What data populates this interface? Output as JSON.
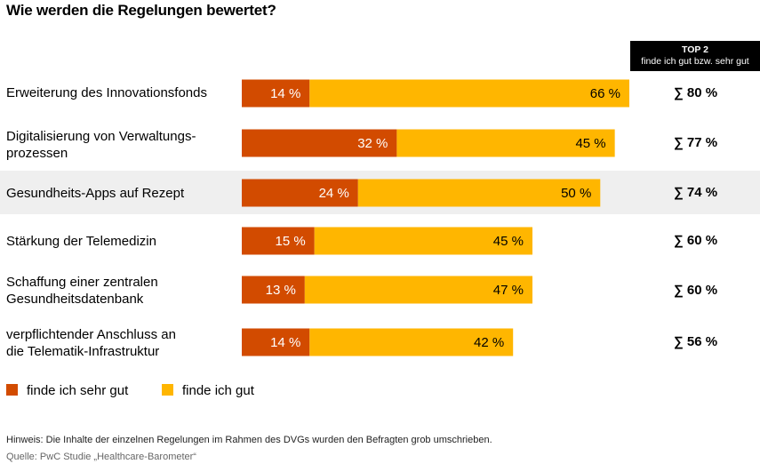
{
  "title": "Wie werden die Regelungen bewertet?",
  "top2_header": {
    "line1": "TOP 2",
    "line2": "finde ich gut bzw. sehr gut"
  },
  "colors": {
    "sehr_gut": "#d24b00",
    "gut": "#ffb600",
    "highlight_row": "#efefef"
  },
  "legend": {
    "sehr_gut": "finde ich sehr gut",
    "gut": "finde ich gut"
  },
  "rows": [
    {
      "label": "Erweiterung des Innovationsfonds",
      "sum": "∑ 80 %"
    },
    {
      "label": "Digitalisierung von Verwaltungs-\nprozessen",
      "sum": "∑ 77 %"
    },
    {
      "label": "Gesundheits-Apps auf Rezept",
      "sum": "∑ 74 %"
    },
    {
      "label": "Stärkung der Telemedizin",
      "sum": "∑ 60 %"
    },
    {
      "label": "Schaffung einer zentralen\nGesundheitsdatenbank",
      "sum": "∑ 60 %"
    },
    {
      "label": "verpflichtender Anschluss an\ndie Telematik-Infrastruktur",
      "sum": "∑ 56 %"
    }
  ],
  "chart_data": {
    "type": "bar",
    "orientation": "horizontal",
    "stacked": true,
    "title": "Wie werden die Regelungen bewertet?",
    "categories": [
      "Erweiterung des Innovationsfonds",
      "Digitalisierung von Verwaltungsprozessen",
      "Gesundheits-Apps auf Rezept",
      "Stärkung der Telemedizin",
      "Schaffung einer zentralen Gesundheitsdatenbank",
      "verpflichtender Anschluss an die Telematik-Infrastruktur"
    ],
    "series": [
      {
        "name": "finde ich sehr gut",
        "color": "#d24b00",
        "values": [
          14,
          32,
          24,
          15,
          13,
          14
        ],
        "labels": [
          "14 %",
          "32 %",
          "24 %",
          "15 %",
          "13 %",
          "14 %"
        ]
      },
      {
        "name": "finde ich gut",
        "color": "#ffb600",
        "values": [
          66,
          45,
          50,
          45,
          47,
          42
        ],
        "labels": [
          "66 %",
          "45 %",
          "50 %",
          "45 %",
          "47 %",
          "42 %"
        ]
      }
    ],
    "top2_totals": [
      80,
      77,
      74,
      60,
      60,
      56
    ],
    "legend_position": "bottom-left",
    "grid": false
  },
  "footnote": "Hinweis: Die Inhalte der einzelnen Regelungen im Rahmen des DVGs wurden den Befragten grob umschrieben.",
  "source": "Quelle: PwC Studie „Healthcare-Barometer“"
}
